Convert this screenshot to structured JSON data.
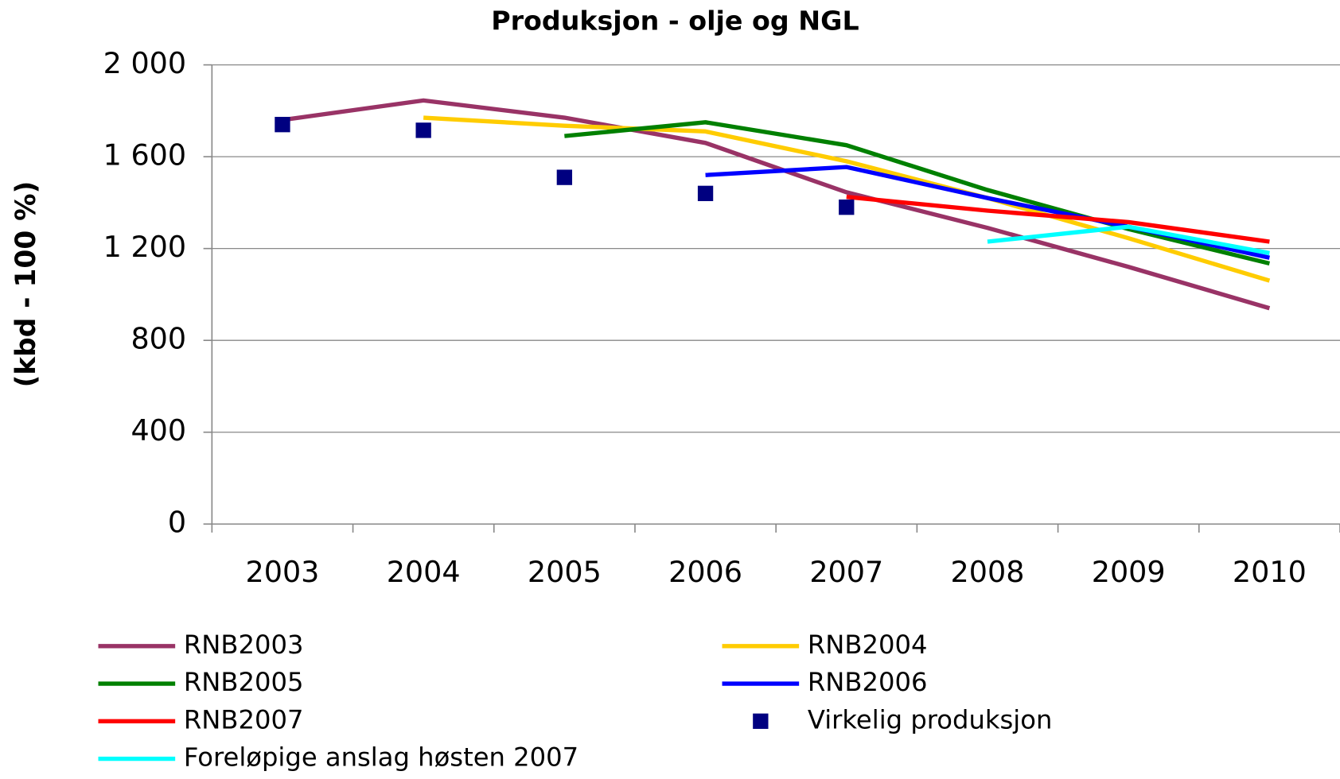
{
  "chart_data": {
    "type": "line",
    "title": "Produksjon - olje og NGL",
    "y_label": "(kbd - 100 %)",
    "categories": [
      "2003",
      "2004",
      "2005",
      "2006",
      "2007",
      "2008",
      "2009",
      "2010"
    ],
    "ylim": [
      0,
      2000
    ],
    "yticks": [
      0,
      400,
      800,
      {
        "value": 1200,
        "label": "1 200"
      },
      {
        "value": 1600,
        "label": "1 600"
      },
      {
        "value": 2000,
        "label": "2 000"
      }
    ],
    "grid": true,
    "legend": "bottom",
    "series": [
      {
        "name": "RNB2003",
        "color": "#993366",
        "mode": "line",
        "values": [
          1760,
          1845,
          1770,
          1660,
          1445,
          1290,
          1120,
          940
        ]
      },
      {
        "name": "RNB2004",
        "color": "#ffcc00",
        "mode": "line",
        "values": [
          null,
          1770,
          1735,
          1710,
          1580,
          1420,
          1245,
          1060
        ]
      },
      {
        "name": "RNB2005",
        "color": "#008000",
        "mode": "line",
        "values": [
          null,
          null,
          1690,
          1750,
          1650,
          1455,
          1285,
          1135
        ]
      },
      {
        "name": "RNB2006",
        "color": "#0000ff",
        "mode": "line",
        "values": [
          null,
          null,
          null,
          1520,
          1555,
          1420,
          1295,
          1160
        ]
      },
      {
        "name": "RNB2007",
        "color": "#ff0000",
        "mode": "line",
        "values": [
          null,
          null,
          null,
          null,
          1425,
          1365,
          1315,
          1230
        ]
      },
      {
        "name": "Virkelig produksjon",
        "color": "#000080",
        "mode": "markers",
        "values": [
          1740,
          1715,
          1510,
          1440,
          1380,
          null,
          null,
          null
        ]
      },
      {
        "name": "Foreløpige anslag høsten 2007",
        "color": "#00ffff",
        "mode": "line",
        "values": [
          null,
          null,
          null,
          null,
          null,
          1230,
          1295,
          1180
        ]
      }
    ]
  }
}
